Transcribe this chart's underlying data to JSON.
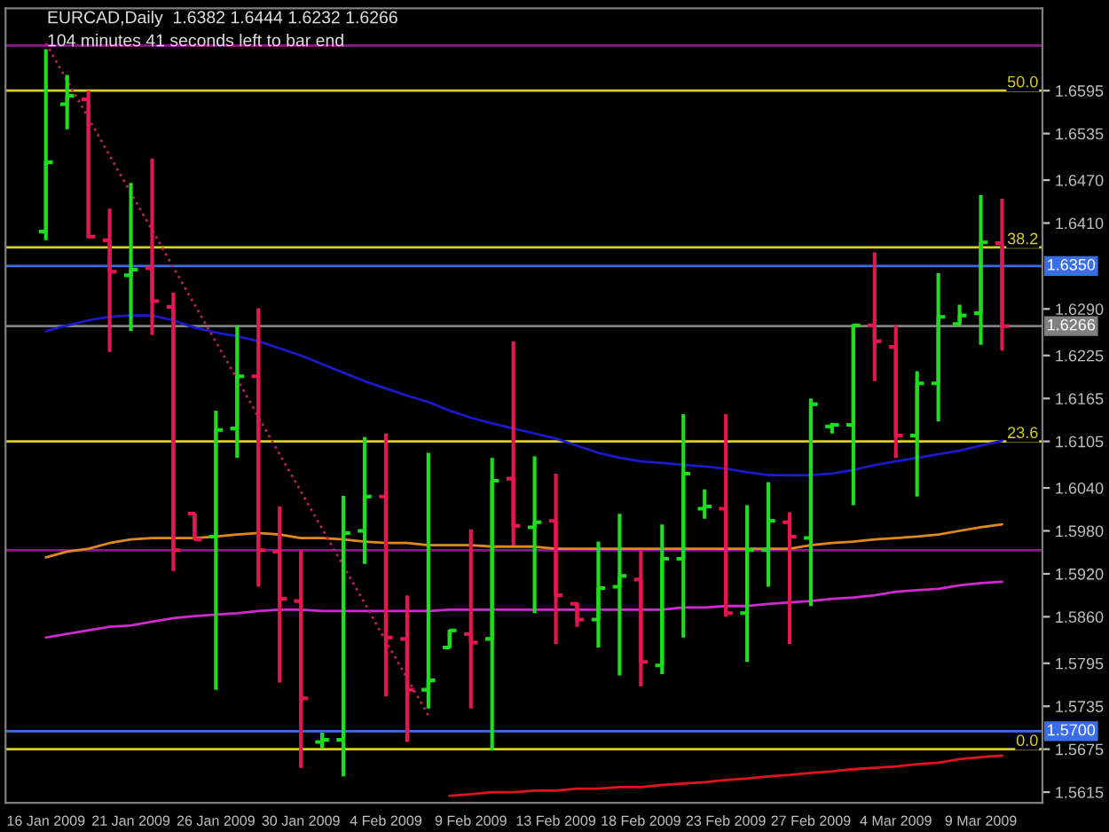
{
  "chart_data": {
    "type": "candlestick",
    "title": "EURCAD,Daily  1.6382 1.6444 1.6232 1.6266",
    "subtitle": "104 minutes 41 seconds left to bar end",
    "categories": [
      "16 Jan 2009",
      null,
      null,
      null,
      "21 Jan 2009",
      null,
      null,
      null,
      "26 Jan 2009",
      null,
      null,
      null,
      "30 Jan 2009",
      null,
      null,
      null,
      "4 Feb 2009",
      null,
      null,
      null,
      "9 Feb 2009",
      null,
      null,
      null,
      "13 Feb 2009",
      null,
      null,
      null,
      "18 Feb 2009",
      null,
      null,
      null,
      "23 Feb 2009",
      null,
      null,
      null,
      "27 Feb 2009",
      null,
      null,
      null,
      "4 Mar 2009",
      null,
      null,
      null,
      "9 Mar 2009",
      null
    ],
    "ohlc": [
      [
        1.6398,
        1.6653,
        1.6386,
        1.6495
      ],
      [
        1.6576,
        1.6617,
        1.6541,
        1.6588
      ],
      [
        1.6583,
        1.6595,
        1.6389,
        1.6391
      ],
      [
        1.6386,
        1.643,
        1.623,
        1.6342
      ],
      [
        1.6337,
        1.6466,
        1.6259,
        1.6345
      ],
      [
        1.6347,
        1.65,
        1.6254,
        1.6301
      ],
      [
        1.6293,
        1.6313,
        1.5924,
        1.5953
      ],
      [
        1.6004,
        1.6004,
        1.5968,
        1.5968
      ],
      [
        1.5972,
        1.6148,
        1.5758,
        1.6121
      ],
      [
        1.6123,
        1.6267,
        1.6082,
        1.6196
      ],
      [
        1.6196,
        1.6291,
        1.5902,
        1.5953
      ],
      [
        1.5951,
        1.6014,
        1.5768,
        1.5885
      ],
      [
        1.5882,
        1.5953,
        1.5649,
        1.5746
      ],
      [
        1.5685,
        1.5698,
        1.5676,
        1.5688
      ],
      [
        1.5688,
        1.6029,
        1.5637,
        1.5977
      ],
      [
        1.598,
        1.6111,
        1.5934,
        1.6028
      ],
      [
        1.6028,
        1.6116,
        1.5749,
        1.5831
      ],
      [
        1.5829,
        1.589,
        1.5685,
        1.5758
      ],
      [
        1.5758,
        1.6089,
        1.5732,
        1.5771
      ],
      [
        1.5817,
        1.5841,
        1.5817,
        1.5841
      ],
      [
        1.5836,
        1.5982,
        1.5732,
        1.5824
      ],
      [
        1.5829,
        1.6082,
        1.5673,
        1.605
      ],
      [
        1.6053,
        1.6245,
        1.596,
        1.5987
      ],
      [
        1.5985,
        1.6084,
        1.5865,
        1.5992
      ],
      [
        1.5994,
        1.606,
        1.5822,
        1.589
      ],
      [
        1.5878,
        1.588,
        1.5846,
        1.5856
      ],
      [
        1.5856,
        1.5965,
        1.5817,
        1.59
      ],
      [
        1.5902,
        1.6004,
        1.5778,
        1.5917
      ],
      [
        1.5912,
        1.5953,
        1.5763,
        1.5797
      ],
      [
        1.5792,
        1.5989,
        1.578,
        1.5941
      ],
      [
        1.5941,
        1.6143,
        1.5831,
        1.606
      ],
      [
        1.6011,
        1.6038,
        1.5997,
        1.6014
      ],
      [
        1.6011,
        1.6143,
        1.586,
        1.5865
      ],
      [
        1.5865,
        1.6016,
        1.5797,
        1.5953
      ],
      [
        1.5953,
        1.6048,
        1.5902,
        1.5994
      ],
      [
        1.5992,
        1.6006,
        1.5822,
        1.5972
      ],
      [
        1.597,
        1.6165,
        1.5875,
        1.6157
      ],
      [
        1.6126,
        1.6131,
        1.6116,
        1.6128
      ],
      [
        1.6128,
        1.6269,
        1.6016,
        1.6267
      ],
      [
        1.6267,
        1.6369,
        1.6189,
        1.6245
      ],
      [
        1.6237,
        1.6267,
        1.6082,
        1.6113
      ],
      [
        1.6113,
        1.6203,
        1.6028,
        1.6186
      ],
      [
        1.6186,
        1.634,
        1.6133,
        1.6279
      ],
      [
        1.6269,
        1.6296,
        1.6267,
        1.6281
      ],
      [
        1.6284,
        1.6449,
        1.624,
        1.6383
      ],
      [
        1.6382,
        1.6444,
        1.6232,
        1.6266
      ]
    ],
    "colors": [
      "#1edc1e",
      "#1edc1e",
      "#e4174f",
      "#e4174f",
      "#1edc1e",
      "#e4174f",
      "#e4174f",
      "#e4174f",
      "#1edc1e",
      "#1edc1e",
      "#e4174f",
      "#e4174f",
      "#e4174f",
      "#1edc1e",
      "#1edc1e",
      "#1edc1e",
      "#e4174f",
      "#e4174f",
      "#1edc1e",
      "#1edc1e",
      "#e4174f",
      "#1edc1e",
      "#e4174f",
      "#1edc1e",
      "#e4174f",
      "#e4174f",
      "#1edc1e",
      "#1edc1e",
      "#e4174f",
      "#1edc1e",
      "#1edc1e",
      "#1edc1e",
      "#e4174f",
      "#1edc1e",
      "#1edc1e",
      "#e4174f",
      "#1edc1e",
      "#1edc1e",
      "#1edc1e",
      "#e4174f",
      "#e4174f",
      "#1edc1e",
      "#1edc1e",
      "#1edc1e",
      "#1edc1e",
      "#e4174f"
    ],
    "series": [
      {
        "type": "line",
        "color": "#1a1acc",
        "values": [
          1.6259,
          1.6267,
          1.6274,
          1.6279,
          1.6281,
          1.6281,
          1.6274,
          1.6264,
          1.6257,
          1.6252,
          1.6245,
          1.6235,
          1.6225,
          1.6213,
          1.6201,
          1.6189,
          1.6179,
          1.6169,
          1.616,
          1.6148,
          1.6138,
          1.613,
          1.6123,
          1.6116,
          1.6109,
          1.6099,
          1.6089,
          1.6082,
          1.6077,
          1.6075,
          1.6072,
          1.607,
          1.6067,
          1.6062,
          1.6058,
          1.6058,
          1.6058,
          1.606,
          1.6065,
          1.6072,
          1.6077,
          1.6082,
          1.6087,
          1.6092,
          1.6099,
          1.6106
        ]
      },
      {
        "type": "line",
        "color": "#e08a1e",
        "values": [
          1.5943,
          1.5951,
          1.5955,
          1.5963,
          1.5968,
          1.597,
          1.597,
          1.597,
          1.5972,
          1.5975,
          1.5977,
          1.5975,
          1.597,
          1.597,
          1.5968,
          1.5965,
          1.5963,
          1.5963,
          1.596,
          1.596,
          1.596,
          1.5958,
          1.5958,
          1.5958,
          1.5955,
          1.5955,
          1.5955,
          1.5955,
          1.5955,
          1.5955,
          1.5955,
          1.5955,
          1.5955,
          1.5955,
          1.5955,
          1.5955,
          1.596,
          1.5963,
          1.5965,
          1.5968,
          1.597,
          1.5972,
          1.5975,
          1.598,
          1.5985,
          1.5989
        ]
      },
      {
        "type": "line",
        "color": "#d22ad2",
        "values": [
          1.5831,
          1.5836,
          1.5841,
          1.5846,
          1.5848,
          1.5853,
          1.5858,
          1.5861,
          1.5863,
          1.5865,
          1.5868,
          1.587,
          1.587,
          1.5868,
          1.5868,
          1.5868,
          1.5868,
          1.5868,
          1.5868,
          1.587,
          1.587,
          1.587,
          1.587,
          1.587,
          1.587,
          1.587,
          1.587,
          1.587,
          1.587,
          1.587,
          1.5873,
          1.5873,
          1.5875,
          1.5875,
          1.5878,
          1.588,
          1.5882,
          1.5885,
          1.5887,
          1.589,
          1.5895,
          1.5897,
          1.5899,
          1.5904,
          1.5907,
          1.5909
        ]
      },
      {
        "type": "line",
        "color": "#e0141e",
        "values": [
          null,
          null,
          null,
          null,
          null,
          null,
          null,
          null,
          null,
          null,
          null,
          null,
          null,
          null,
          null,
          null,
          null,
          null,
          null,
          1.561,
          1.5612,
          1.5615,
          1.5615,
          1.5617,
          1.5617,
          1.562,
          1.562,
          1.5622,
          1.5622,
          1.5625,
          1.5627,
          1.5629,
          1.5632,
          1.5634,
          1.5637,
          1.5639,
          1.5642,
          1.5644,
          1.5647,
          1.5649,
          1.5651,
          1.5654,
          1.5656,
          1.5661,
          1.5664,
          1.5666
        ]
      },
      {
        "type": "line",
        "color": "#b8205a",
        "line_style": "dotted",
        "values": [
          1.6661,
          1.6609,
          1.6557,
          1.6504,
          1.6452,
          1.64,
          1.6348,
          1.6296,
          1.6244,
          1.6192,
          1.6139,
          1.6087,
          1.6035,
          1.5983,
          1.5931,
          1.5879,
          1.5826,
          1.5774,
          1.5722,
          null,
          null,
          null,
          null,
          null,
          null,
          null,
          null,
          null,
          null,
          null,
          null,
          null,
          null,
          null,
          null,
          null,
          null,
          null,
          null,
          null,
          null,
          null,
          null,
          null,
          null,
          null
        ]
      }
    ],
    "ylim": [
      1.56,
      1.671
    ],
    "yticks": [
      1.6595,
      1.6535,
      {
        "value": 1.647,
        "label": "1.6470"
      },
      {
        "value": 1.641,
        "label": "1.6410"
      },
      {
        "value": 1.629,
        "label": "1.6290"
      },
      1.6225,
      1.6165,
      1.6105,
      {
        "value": 1.604,
        "label": "1.6040"
      },
      {
        "value": 1.598,
        "label": "1.5980"
      },
      {
        "value": 1.592,
        "label": "1.5920"
      },
      {
        "value": 1.586,
        "label": "1.5860"
      },
      1.5795,
      1.5735,
      1.5675,
      1.5615
    ],
    "ref_lines": [
      {
        "axis": "y",
        "value": 1.6658,
        "color": "#8a1a8a"
      },
      {
        "axis": "y",
        "value": 1.6595,
        "color": "#d8d020"
      },
      {
        "axis": "y",
        "value": 1.6376,
        "color": "#d8d020"
      },
      {
        "axis": "y",
        "value": 1.635,
        "label": "1.6350",
        "color": "#3a6ee8"
      },
      {
        "axis": "y",
        "value": 1.6266,
        "label": "1.6266",
        "color": "#808080"
      },
      {
        "axis": "y",
        "value": 1.6105,
        "color": "#d8d020"
      },
      {
        "axis": "y",
        "value": 1.5953,
        "color": "#8a1a8a"
      },
      {
        "axis": "y",
        "value": 1.57,
        "label": "1.5700",
        "color": "#3a6ee8"
      },
      {
        "axis": "y",
        "value": 1.5675,
        "color": "#d8d020"
      }
    ],
    "annotations": [
      {
        "text": "50.0",
        "y": 1.6595
      },
      {
        "text": "38.2",
        "y": 1.6376
      },
      {
        "text": "23.6",
        "y": 1.6105
      },
      {
        "text": "0.0",
        "y": 1.5675
      }
    ]
  }
}
